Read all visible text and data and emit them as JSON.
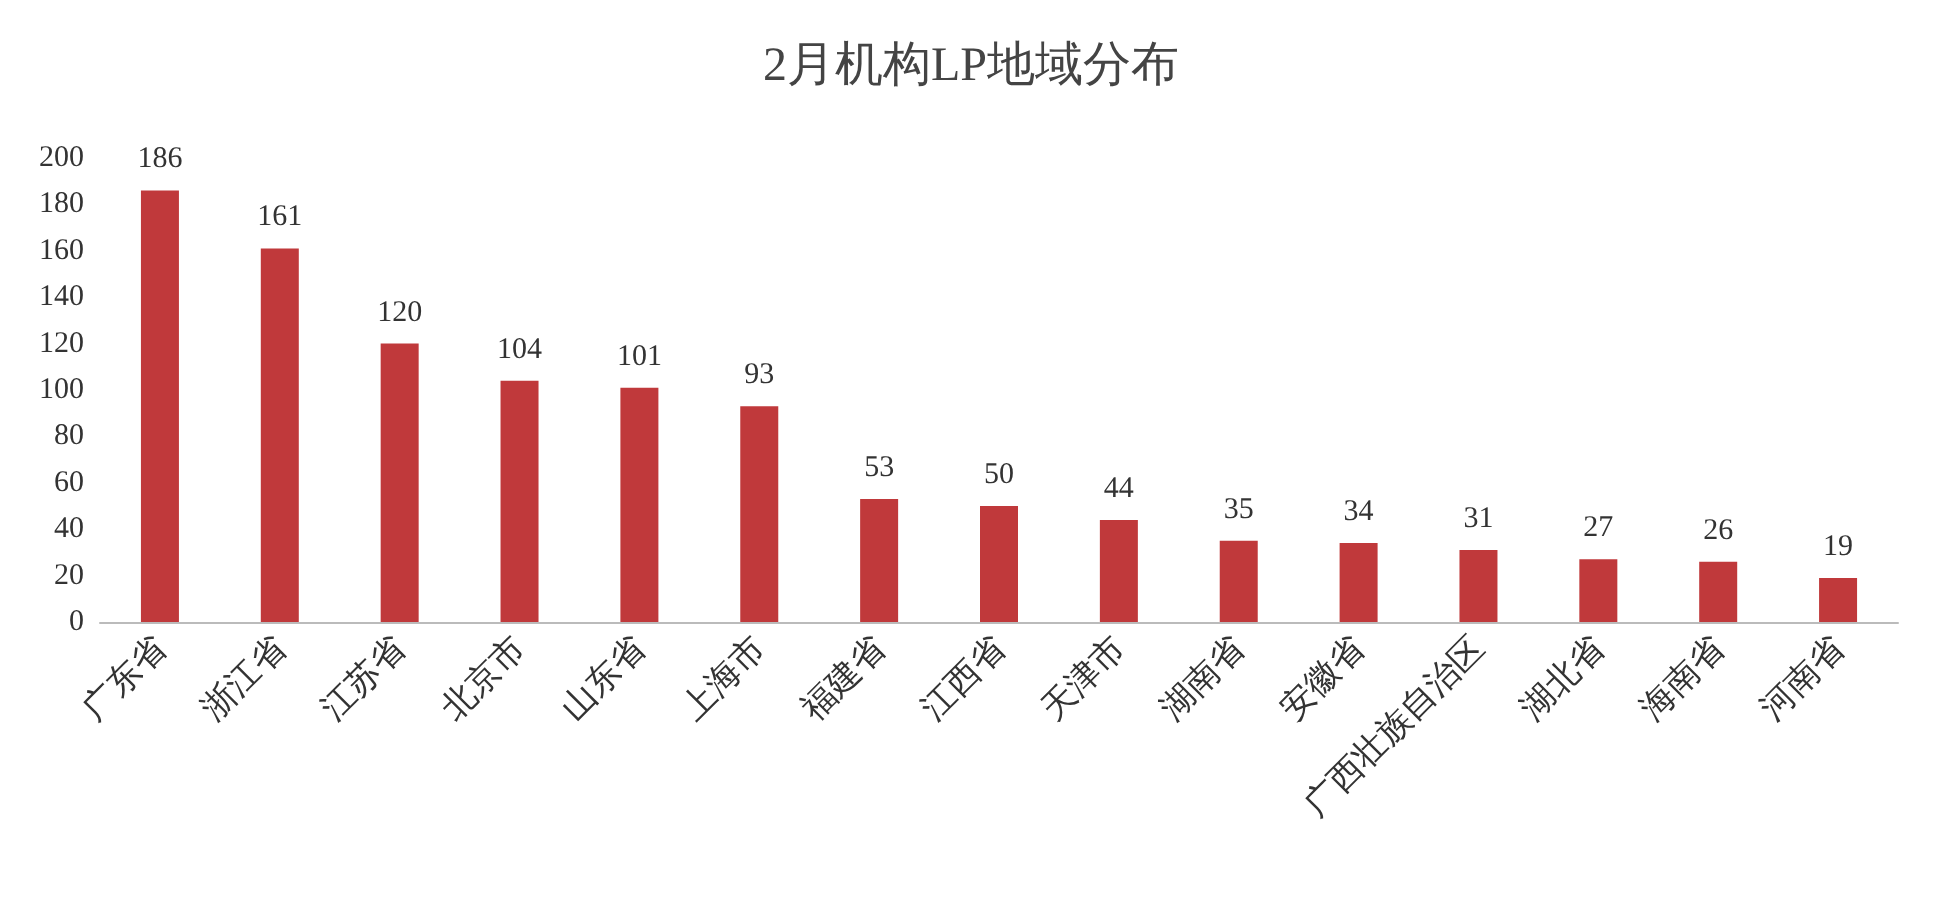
{
  "chart_data": {
    "type": "bar",
    "title": "2月机构LP地域分布",
    "categories": [
      "广东省",
      "浙江省",
      "江苏省",
      "北京市",
      "山东省",
      "上海市",
      "福建省",
      "江西省",
      "天津市",
      "湖南省",
      "安徽省",
      "广西壮族自治区",
      "湖北省",
      "海南省",
      "河南省"
    ],
    "values": [
      186,
      161,
      120,
      104,
      101,
      93,
      53,
      50,
      44,
      35,
      34,
      31,
      27,
      26,
      19
    ],
    "color": "#c0393b",
    "ylim": [
      0,
      200
    ],
    "yticks": [
      0,
      20,
      40,
      60,
      80,
      100,
      120,
      140,
      160,
      180,
      200
    ],
    "grid": false,
    "data_labels": true
  }
}
